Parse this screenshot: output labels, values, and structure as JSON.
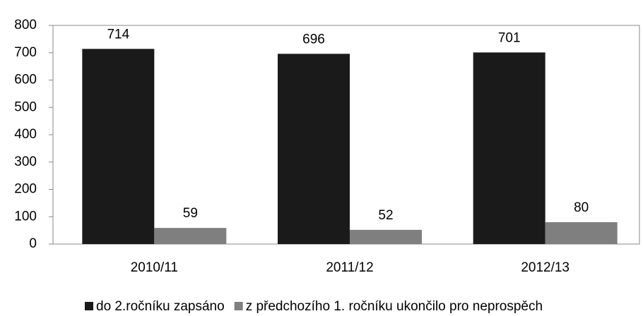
{
  "chart_data": {
    "type": "bar",
    "categories": [
      "2010/11",
      "2011/12",
      "2012/13"
    ],
    "series": [
      {
        "name": "do 2.ročníku zapsáno",
        "color": "#1a1a1a",
        "values": [
          714,
          696,
          701
        ]
      },
      {
        "name": "z předchozího 1. ročníku ukončilo pro neprospěch",
        "color": "#7f7f7f",
        "values": [
          59,
          52,
          80
        ]
      }
    ],
    "ylim": [
      0,
      800
    ],
    "yticks": [
      0,
      100,
      200,
      300,
      400,
      500,
      600,
      700,
      800
    ],
    "grid": false,
    "legend": "bottom"
  }
}
